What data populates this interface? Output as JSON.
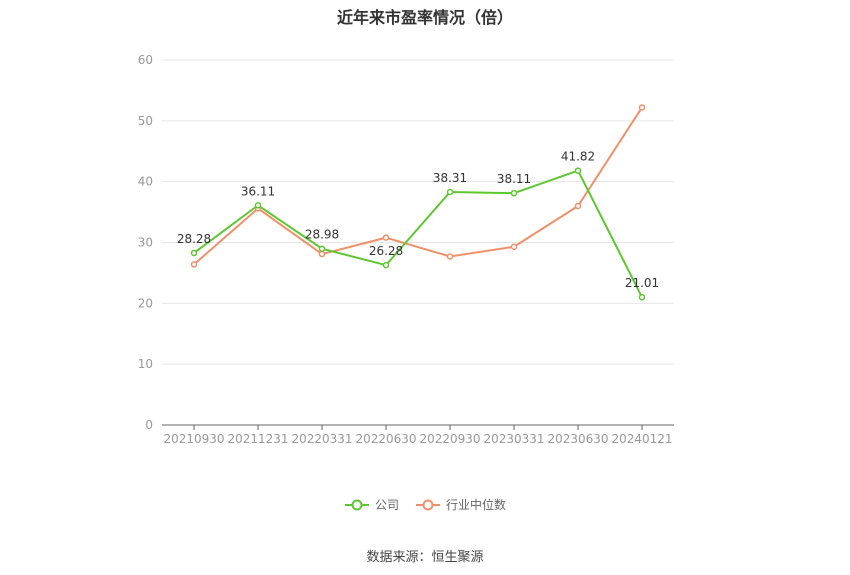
{
  "chart_data": {
    "type": "line",
    "title": "近年来市盈率情况（倍）",
    "categories": [
      "20210930",
      "20211231",
      "20220331",
      "20220630",
      "20220930",
      "20230331",
      "20230630",
      "20240121"
    ],
    "ylim": [
      0,
      60
    ],
    "yticks": [
      0,
      10,
      20,
      30,
      40,
      50,
      60
    ],
    "grid": true,
    "legend_position": "bottom",
    "series": [
      {
        "name": "公司",
        "color": "#5cc72f",
        "values": [
          28.28,
          36.11,
          28.98,
          26.28,
          38.31,
          38.11,
          41.82,
          21.01
        ],
        "data_labels": [
          "28.28",
          "36.11",
          "28.98",
          "26.28",
          "38.31",
          "38.11",
          "41.82",
          "21.01"
        ]
      },
      {
        "name": "行业中位数",
        "color": "#f0906a",
        "values": [
          26.4,
          35.6,
          28.1,
          30.8,
          27.7,
          29.3,
          36.0,
          52.2
        ]
      }
    ]
  },
  "source_text": "数据来源：恒生聚源"
}
